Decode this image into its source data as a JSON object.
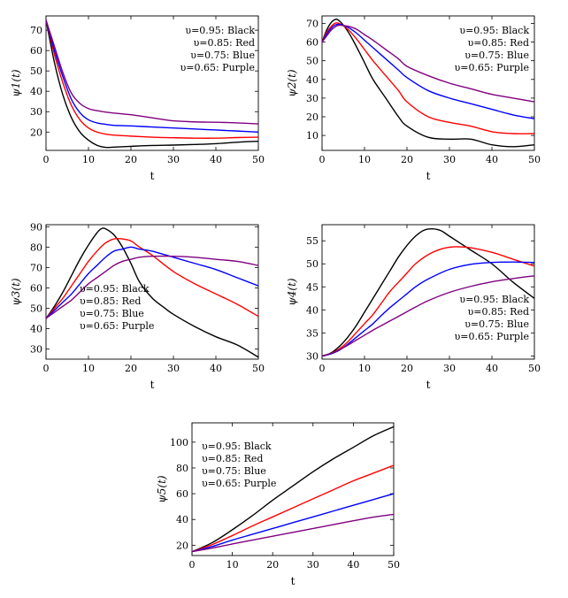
{
  "chart_data": [
    {
      "type": "line",
      "xlabel": "t",
      "ylabel": "ψ1(t)",
      "xlim": [
        0,
        50
      ],
      "ylim": [
        11,
        77
      ],
      "xticks": [
        0,
        10,
        20,
        30,
        40,
        50
      ],
      "yticks": [
        20,
        30,
        40,
        50,
        60,
        70
      ],
      "grid": false,
      "legend_position": "top-right",
      "legend": [
        "υ=0.95:  Black",
        "υ=0.85:  Red",
        "υ=0.75:  Blue",
        "υ=0.65:  Purple"
      ],
      "series": [
        {
          "color": "#000000",
          "x": [
            0,
            2,
            4,
            6,
            8,
            10,
            12,
            14,
            16,
            20,
            25,
            30,
            35,
            40,
            45,
            50
          ],
          "y": [
            75,
            54,
            38,
            27,
            20,
            16,
            13.5,
            12.5,
            12.6,
            13,
            13.4,
            13.6,
            13.9,
            14.3,
            15,
            15.5
          ]
        },
        {
          "color": "#ff0000",
          "x": [
            0,
            2,
            4,
            6,
            8,
            10,
            12,
            14,
            16,
            20,
            25,
            30,
            35,
            40,
            45,
            50
          ],
          "y": [
            75,
            58,
            44,
            33,
            26,
            22,
            20,
            19,
            18.5,
            18,
            17.5,
            17.2,
            17,
            17,
            17.3,
            17.5
          ]
        },
        {
          "color": "#0000ff",
          "x": [
            0,
            2,
            4,
            6,
            8,
            10,
            12,
            14,
            16,
            20,
            25,
            30,
            35,
            40,
            45,
            50
          ],
          "y": [
            75,
            60,
            47,
            36,
            29.5,
            26,
            24.5,
            23.8,
            23.3,
            23,
            22.5,
            22,
            21.5,
            21,
            20.5,
            20
          ]
        },
        {
          "color": "#800080",
          "x": [
            0,
            2,
            4,
            6,
            8,
            10,
            12,
            14,
            16,
            20,
            25,
            30,
            35,
            40,
            45,
            50
          ],
          "y": [
            75,
            62,
            49,
            39,
            34,
            31.5,
            30.5,
            29.8,
            29.3,
            28.5,
            27,
            25.5,
            25,
            24.8,
            24.5,
            24
          ]
        }
      ]
    },
    {
      "type": "line",
      "xlabel": "t",
      "ylabel": "ψ2(t)",
      "xlim": [
        0,
        50
      ],
      "ylim": [
        2,
        74
      ],
      "xticks": [
        0,
        10,
        20,
        30,
        40,
        50
      ],
      "yticks": [
        10,
        20,
        30,
        40,
        50,
        60,
        70
      ],
      "grid": false,
      "legend_position": "top-right",
      "legend": [
        "υ=0.95:  Black",
        "υ=0.85:  Red",
        "υ=0.75:  Blue",
        "υ=0.65:  Purple"
      ],
      "series": [
        {
          "color": "#000000",
          "x": [
            0,
            1,
            2,
            3,
            4,
            6,
            8,
            10,
            12,
            15,
            18,
            20,
            25,
            30,
            35,
            40,
            45,
            50
          ],
          "y": [
            60,
            66,
            70,
            72,
            71.5,
            66,
            58,
            49,
            40,
            30,
            20,
            15,
            9,
            8,
            8,
            5,
            4,
            5
          ]
        },
        {
          "color": "#ff0000",
          "x": [
            0,
            1,
            2,
            3,
            4,
            6,
            8,
            10,
            12,
            15,
            18,
            20,
            25,
            30,
            35,
            40,
            45,
            50
          ],
          "y": [
            60,
            65,
            68,
            70,
            70,
            67,
            62,
            56,
            50,
            42,
            34,
            28,
            20,
            17,
            15,
            12,
            11,
            11
          ]
        },
        {
          "color": "#0000ff",
          "x": [
            0,
            1,
            2,
            3,
            4,
            6,
            8,
            10,
            12,
            15,
            18,
            20,
            25,
            30,
            35,
            40,
            45,
            50
          ],
          "y": [
            60,
            64,
            67,
            69,
            69.5,
            68,
            65,
            61,
            57,
            51,
            45,
            41,
            34,
            30,
            27,
            24,
            21,
            19
          ]
        },
        {
          "color": "#800080",
          "x": [
            0,
            1,
            2,
            3,
            4,
            6,
            8,
            10,
            12,
            15,
            18,
            20,
            25,
            30,
            35,
            40,
            45,
            50
          ],
          "y": [
            60,
            63,
            66,
            68,
            69,
            68.5,
            67,
            64,
            61,
            56,
            51,
            47,
            42,
            38,
            35,
            32,
            30,
            28
          ]
        }
      ]
    },
    {
      "type": "line",
      "xlabel": "t",
      "ylabel": "ψ3(t)",
      "xlim": [
        0,
        50
      ],
      "ylim": [
        25,
        91
      ],
      "xticks": [
        0,
        10,
        20,
        30,
        40,
        50
      ],
      "yticks": [
        30,
        40,
        50,
        60,
        70,
        80,
        90
      ],
      "grid": false,
      "legend_position": "bottom-left",
      "legend": [
        "υ=0.95:  Black",
        "υ=0.85:  Red",
        "υ=0.75:  Blue",
        "υ=0.65:  Purple"
      ],
      "series": [
        {
          "color": "#000000",
          "x": [
            0,
            2,
            4,
            6,
            8,
            10,
            12,
            13,
            14,
            16,
            18,
            20,
            22,
            25,
            28,
            30,
            35,
            40,
            45,
            50
          ],
          "y": [
            45,
            51,
            58,
            66,
            74,
            81,
            87,
            89,
            89,
            86,
            80,
            72,
            63,
            55,
            50,
            47,
            41,
            36,
            32,
            26
          ]
        },
        {
          "color": "#ff0000",
          "x": [
            0,
            2,
            4,
            6,
            8,
            10,
            12,
            14,
            16,
            18,
            20,
            22,
            25,
            30,
            35,
            40,
            45,
            50
          ],
          "y": [
            45,
            50,
            55,
            61,
            67,
            73,
            78,
            82,
            84,
            84,
            83,
            80,
            76,
            68,
            62,
            57,
            52,
            46
          ]
        },
        {
          "color": "#0000ff",
          "x": [
            0,
            2,
            4,
            6,
            8,
            10,
            12,
            14,
            16,
            18,
            20,
            22,
            25,
            30,
            35,
            40,
            45,
            50
          ],
          "y": [
            45,
            49,
            53,
            57,
            62,
            67,
            71,
            75,
            78,
            79,
            80,
            79,
            78,
            75,
            72,
            69,
            65,
            61
          ]
        },
        {
          "color": "#800080",
          "x": [
            0,
            2,
            4,
            6,
            8,
            10,
            12,
            14,
            16,
            18,
            20,
            22,
            25,
            30,
            35,
            40,
            45,
            50
          ],
          "y": [
            45,
            48,
            51,
            54,
            58,
            62,
            65,
            68,
            71,
            73,
            74,
            75,
            75.5,
            75.5,
            75,
            74,
            73,
            71
          ]
        }
      ]
    },
    {
      "type": "line",
      "xlabel": "t",
      "ylabel": "ψ4(t)",
      "xlim": [
        0,
        50
      ],
      "ylim": [
        29.3,
        58.5
      ],
      "xticks": [
        0,
        10,
        20,
        30,
        40,
        50
      ],
      "yticks": [
        30,
        35,
        40,
        45,
        50,
        55
      ],
      "grid": false,
      "legend_position": "bottom-right",
      "legend": [
        "υ=0.95:  Black",
        "υ=0.85:  Red",
        "υ=0.75:  Blue",
        "υ=0.65:  Purple"
      ],
      "series": [
        {
          "color": "#000000",
          "x": [
            0,
            2,
            4,
            6,
            8,
            10,
            12,
            14,
            16,
            18,
            20,
            22,
            24,
            26,
            28,
            30,
            35,
            40,
            45,
            50
          ],
          "y": [
            30,
            30.6,
            32,
            34,
            36.5,
            39.5,
            42.5,
            45.5,
            48.5,
            51.5,
            54,
            56,
            57.3,
            57.6,
            57.2,
            56,
            53,
            50,
            46,
            42.5
          ]
        },
        {
          "color": "#ff0000",
          "x": [
            0,
            2,
            4,
            6,
            8,
            10,
            12,
            14,
            16,
            18,
            20,
            22,
            25,
            28,
            30,
            32,
            35,
            40,
            45,
            50
          ],
          "y": [
            30,
            30.5,
            31.5,
            33,
            35,
            37,
            39,
            41.5,
            44,
            46,
            48,
            50,
            52,
            53.2,
            53.6,
            53.7,
            53.5,
            52.5,
            51,
            49.5
          ]
        },
        {
          "color": "#0000ff",
          "x": [
            0,
            2,
            4,
            6,
            8,
            10,
            12,
            14,
            16,
            18,
            20,
            22,
            25,
            30,
            35,
            40,
            45,
            50
          ],
          "y": [
            30,
            30.4,
            31.2,
            32.5,
            34,
            35.5,
            37,
            38.8,
            40.5,
            42,
            43.5,
            45,
            46.7,
            48.8,
            49.9,
            50.3,
            50.4,
            50.3
          ]
        },
        {
          "color": "#800080",
          "x": [
            0,
            2,
            4,
            6,
            8,
            10,
            12,
            14,
            16,
            18,
            20,
            22,
            25,
            30,
            35,
            40,
            45,
            50
          ],
          "y": [
            30,
            30.5,
            31.3,
            32.3,
            33.4,
            34.5,
            35.6,
            36.6,
            37.6,
            38.6,
            39.6,
            40.6,
            42,
            43.8,
            45.1,
            46.1,
            46.8,
            47.4
          ]
        }
      ]
    },
    {
      "type": "line",
      "xlabel": "t",
      "ylabel": "ψ5(t)",
      "xlim": [
        0,
        50
      ],
      "ylim": [
        12,
        115
      ],
      "xticks": [
        0,
        10,
        20,
        30,
        40,
        50
      ],
      "yticks": [
        20,
        40,
        60,
        80,
        100
      ],
      "grid": false,
      "legend_position": "top-left",
      "legend": [
        "υ=0.95:  Black",
        "υ=0.85:  Red",
        "υ=0.75:  Blue",
        "υ=0.65:  Purple"
      ],
      "series": [
        {
          "color": "#000000",
          "x": [
            0,
            5,
            10,
            15,
            20,
            25,
            30,
            35,
            40,
            45,
            50
          ],
          "y": [
            15,
            22,
            32,
            43,
            55,
            66,
            77,
            87,
            96,
            105,
            112
          ]
        },
        {
          "color": "#ff0000",
          "x": [
            0,
            5,
            10,
            15,
            20,
            25,
            30,
            35,
            40,
            45,
            50
          ],
          "y": [
            15,
            20.5,
            27.5,
            35,
            42,
            49,
            56,
            63,
            70,
            76,
            82
          ]
        },
        {
          "color": "#0000ff",
          "x": [
            0,
            5,
            10,
            15,
            20,
            25,
            30,
            35,
            40,
            45,
            50
          ],
          "y": [
            15,
            19,
            24,
            28.5,
            33,
            37.5,
            42,
            46.5,
            51,
            55.5,
            60
          ]
        },
        {
          "color": "#800080",
          "x": [
            0,
            5,
            10,
            15,
            20,
            25,
            30,
            35,
            40,
            45,
            50
          ],
          "y": [
            15,
            17.8,
            21,
            24,
            27,
            30,
            33,
            36,
            39,
            41.8,
            44
          ]
        }
      ]
    }
  ]
}
